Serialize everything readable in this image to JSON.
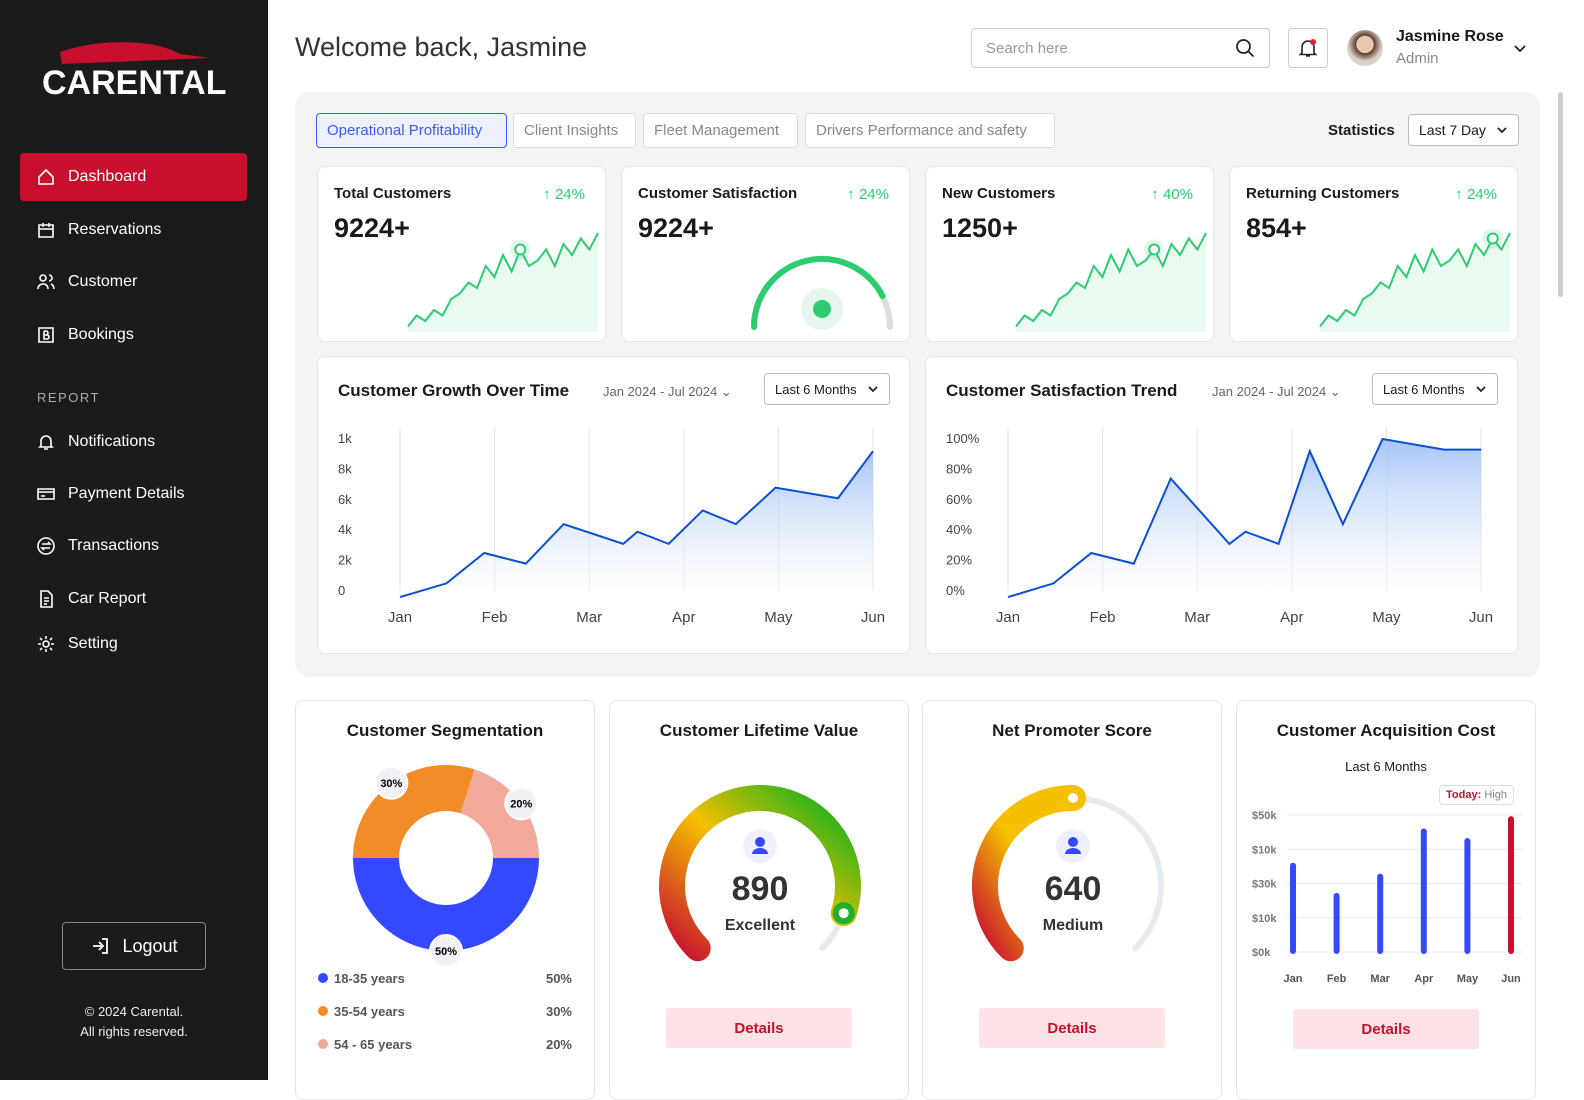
{
  "brand": {
    "name": "CARENTAL",
    "accent": "#c8102e"
  },
  "sidebar": {
    "items": [
      {
        "label": "Dashboard",
        "icon": "home-icon",
        "active": true
      },
      {
        "label": "Reservations",
        "icon": "calendar-icon"
      },
      {
        "label": "Customer",
        "icon": "users-icon"
      },
      {
        "label": "Bookings",
        "icon": "bookings-icon"
      }
    ],
    "report_label": "REPORT",
    "report_items": [
      {
        "label": "Notifications",
        "icon": "bell-icon"
      },
      {
        "label": "Payment Details",
        "icon": "card-icon"
      },
      {
        "label": "Transactions",
        "icon": "transactions-icon"
      },
      {
        "label": "Car Report",
        "icon": "document-icon"
      },
      {
        "label": "Setting",
        "icon": "gear-icon"
      }
    ],
    "logout": "Logout",
    "copyright1": "© 2024 Carental.",
    "copyright2": "All rights reserved."
  },
  "header": {
    "welcome": "Welcome back, Jasmine",
    "search_placeholder": "Search here",
    "user_name": "Jasmine Rose",
    "user_role": "Admin"
  },
  "tabs": [
    "Operational Profitability",
    "Client Insights",
    "Fleet Management",
    "Drivers Performance and safety"
  ],
  "statistics": {
    "label": "Statistics",
    "period": "Last 7 Day"
  },
  "kpis": [
    {
      "title": "Total Customers",
      "delta": "24%",
      "value": "9224+",
      "trend": [
        1,
        3,
        2,
        4,
        3,
        6,
        7,
        9,
        8,
        12,
        10,
        14,
        11,
        15,
        12,
        13,
        15,
        12,
        16,
        14,
        17,
        15,
        18
      ]
    },
    {
      "title": "Customer Satisfaction",
      "delta": "24%",
      "value": "9224+",
      "gauge_fraction": 0.85
    },
    {
      "title": "New Customers",
      "delta": "40%",
      "value": "1250+",
      "trend": [
        1,
        3,
        2,
        4,
        3,
        6,
        7,
        9,
        8,
        12,
        10,
        14,
        11,
        15,
        12,
        13,
        15,
        12,
        16,
        14,
        17,
        15,
        18
      ]
    },
    {
      "title": "Returning Customers",
      "delta": "24%",
      "value": "854+",
      "trend": [
        1,
        3,
        2,
        4,
        3,
        6,
        7,
        9,
        8,
        12,
        10,
        14,
        11,
        15,
        12,
        13,
        15,
        12,
        16,
        14,
        17,
        15,
        18
      ]
    }
  ],
  "chart_data": [
    {
      "type": "area",
      "title": "Customer Growth Over Time",
      "range": "Jan 2024 - Jul 2024",
      "period": "Last 6 Months",
      "x_labels": [
        "Jan",
        "Feb",
        "Mar",
        "Apr",
        "May",
        "Jun"
      ],
      "y_labels": [
        "0",
        "2k",
        "4k",
        "6k",
        "8k",
        "1k"
      ],
      "ylim": [
        0,
        10000
      ],
      "x": [
        0,
        0.49,
        0.89,
        1.33,
        1.73,
        2.36,
        2.51,
        2.84,
        3.2,
        3.55,
        3.97,
        4.63,
        5
      ],
      "y": [
        -400,
        500,
        2500,
        1800,
        4400,
        3100,
        3900,
        3100,
        5300,
        4400,
        6800,
        6100,
        9200
      ],
      "grid": "vertical",
      "color": "#0a4fd1"
    },
    {
      "type": "area",
      "title": "Customer Satisfaction Trend",
      "range": "Jan 2024 - Jul 2024",
      "period": "Last 6 Months",
      "x_labels": [
        "Jan",
        "Feb",
        "Mar",
        "Apr",
        "May",
        "Jun"
      ],
      "y_labels": [
        "0%",
        "20%",
        "40%",
        "60%",
        "80%",
        "100%"
      ],
      "ylim": [
        0,
        100
      ],
      "x": [
        0,
        0.48,
        0.88,
        1.33,
        1.72,
        2.34,
        2.51,
        2.86,
        3.19,
        3.54,
        3.96,
        4.61,
        5
      ],
      "y": [
        -4,
        5,
        25,
        18,
        74,
        31,
        39,
        31,
        92,
        44,
        100,
        93,
        93
      ],
      "grid": "vertical",
      "color": "#0a4fd1"
    },
    {
      "type": "pie",
      "title": "Customer Segmentation",
      "slices": [
        {
          "label": "18-35 years",
          "value": 50,
          "pct": "50%",
          "color": "#3449ff"
        },
        {
          "label": "35-54 years",
          "value": 30,
          "pct": "30%",
          "color": "#f28c28"
        },
        {
          "label": "54 - 65 years",
          "value": 20,
          "pct": "20%",
          "color": "#f2a99a"
        }
      ]
    },
    {
      "type": "bar",
      "title": "Customer Acquisition Cost",
      "subtitle": "Last 6 Months",
      "badge_label": "Today:",
      "badge_value": "High",
      "categories": [
        "Jan",
        "Feb",
        "Mar",
        "Apr",
        "May",
        "Jun"
      ],
      "y_labels": [
        "$0k",
        "$10k",
        "$30k",
        "$10k",
        "$50k"
      ],
      "values_fraction_of_axis": [
        0.63,
        0.41,
        0.55,
        0.88,
        0.81,
        0.97
      ],
      "colors": [
        "#3449ff",
        "#3449ff",
        "#3449ff",
        "#3449ff",
        "#3449ff",
        "#c8102e"
      ]
    }
  ],
  "clv": {
    "title": "Customer Lifetime Value",
    "value": "890",
    "rating": "Excellent",
    "fraction": 0.9,
    "details": "Details"
  },
  "nps": {
    "title": "Net Promoter Score",
    "value": "640",
    "rating": "Medium",
    "fraction": 0.5,
    "details": "Details"
  },
  "cac_details": "Details"
}
